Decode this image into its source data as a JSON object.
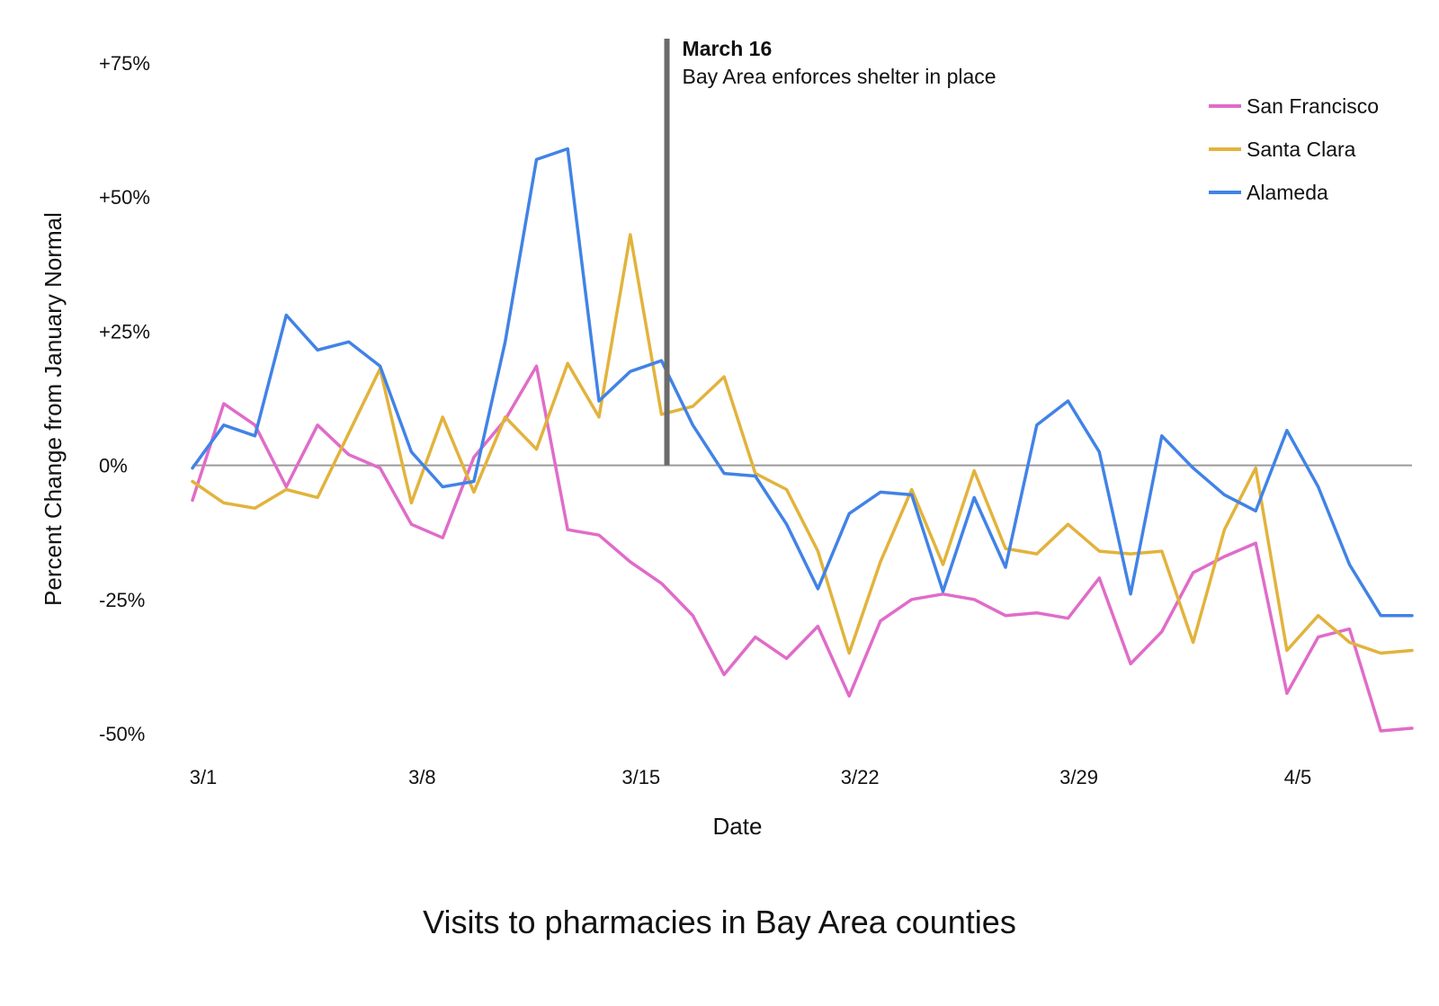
{
  "chart_data": {
    "type": "line",
    "title": "Visits to pharmacies in Bay Area counties",
    "xlabel": "Date",
    "ylabel": "Percent Change from January Normal",
    "x": [
      "3/1",
      "3/2",
      "3/3",
      "3/4",
      "3/5",
      "3/6",
      "3/7",
      "3/8",
      "3/9",
      "3/10",
      "3/11",
      "3/12",
      "3/13",
      "3/14",
      "3/15",
      "3/16",
      "3/17",
      "3/18",
      "3/19",
      "3/20",
      "3/21",
      "3/22",
      "3/23",
      "3/24",
      "3/25",
      "3/26",
      "3/27",
      "3/28",
      "3/29",
      "3/30",
      "3/31",
      "4/1",
      "4/2",
      "4/3",
      "4/4",
      "4/5",
      "4/6",
      "4/7",
      "4/8",
      "4/9"
    ],
    "x_tick_labels": [
      "3/1",
      "3/8",
      "3/15",
      "3/22",
      "3/29",
      "4/5"
    ],
    "y_ticks": [
      75,
      50,
      25,
      0,
      -25,
      -50
    ],
    "y_tick_labels": [
      "+75%",
      "+50%",
      "+25%",
      "0%",
      "-25%",
      "-50%"
    ],
    "ylim": [
      -50,
      75
    ],
    "grid": false,
    "zero_line": true,
    "legend_position": "top-right",
    "series": [
      {
        "name": "San Francisco",
        "color": "#E06CC8",
        "values": [
          -6.5,
          11.5,
          7.5,
          -4,
          7.5,
          2,
          -0.5,
          -11,
          -13.5,
          1.5,
          8.5,
          18.5,
          -12,
          -13,
          -18,
          -22,
          -28,
          -39,
          -32,
          -36,
          -30,
          -43,
          -29,
          -25,
          -24,
          -25,
          -28,
          -27.5,
          -28.5,
          -21,
          -37,
          -31,
          -20,
          -17,
          -14.5,
          -42.5,
          -32,
          -30.5,
          -49.5,
          -49
        ]
      },
      {
        "name": "Santa Clara",
        "color": "#E2B33C",
        "values": [
          -3,
          -7,
          -8,
          -4.5,
          -6,
          6,
          18,
          -7,
          9,
          -5,
          9,
          3,
          19,
          9,
          43,
          9.5,
          11,
          16.5,
          -1.5,
          -4.5,
          -16,
          -35,
          -18,
          -4.5,
          -18.5,
          -1,
          -15.5,
          -16.5,
          -11,
          -16,
          -16.5,
          -16,
          -33,
          -12,
          -0.5,
          -34.5,
          -28,
          -33,
          -35,
          -34.5
        ]
      },
      {
        "name": "Alameda",
        "color": "#4183E6",
        "values": [
          -0.5,
          7.5,
          5.5,
          28,
          21.5,
          23,
          18.5,
          2.5,
          -4,
          -3,
          23,
          57,
          59,
          12,
          17.5,
          19.5,
          7.5,
          -1.5,
          -2,
          -11,
          -23,
          -9,
          -5,
          -5.5,
          -23.5,
          -6,
          -19,
          7.5,
          12,
          2.5,
          -24,
          5.5,
          -0.5,
          -5.5,
          -8.5,
          6.5,
          -4,
          -18.5,
          -28,
          -28
        ]
      }
    ],
    "annotations": [
      {
        "x": "3/16",
        "title": "March 16",
        "text": "Bay Area enforces shelter in place",
        "color": "#6B6B6B"
      }
    ]
  }
}
